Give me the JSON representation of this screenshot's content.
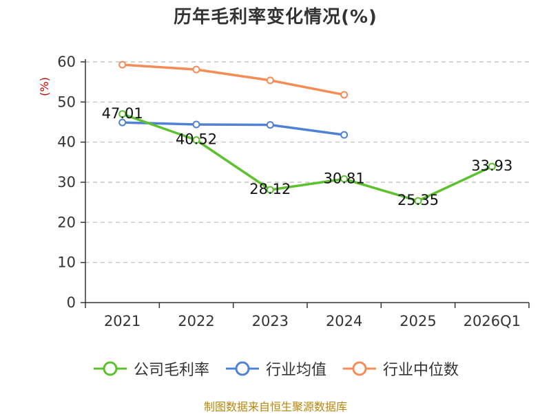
{
  "chart_data": {
    "type": "line",
    "title": "历年毛利率变化情况(%)",
    "ylabel": "(%)",
    "categories": [
      "2021",
      "2022",
      "2023",
      "2024",
      "2025",
      "2026Q1"
    ],
    "ylim": [
      0,
      60
    ],
    "yticks": [
      0,
      10,
      20,
      30,
      40,
      50,
      60
    ],
    "grid": true,
    "legend_position": "bottom",
    "series": [
      {
        "name": "公司毛利率",
        "color": "#5cc12c",
        "values": [
          47.01,
          40.52,
          28.12,
          30.81,
          25.35,
          33.93
        ],
        "labels": [
          "47.01",
          "40.52",
          "28.12",
          "30.81",
          "25.35",
          "33.93"
        ]
      },
      {
        "name": "行业均值",
        "color": "#4f81d6",
        "values": [
          44.9,
          44.4,
          44.3,
          41.8,
          null,
          null
        ]
      },
      {
        "name": "行业中位数",
        "color": "#f58c55",
        "values": [
          59.3,
          58.1,
          55.4,
          51.8,
          null,
          null
        ]
      }
    ]
  },
  "source_note": "制图数据来自恒生聚源数据库",
  "colors": {
    "axis": "#333333",
    "grid": "#bbbbbb",
    "ylabel": "#cc0000"
  }
}
